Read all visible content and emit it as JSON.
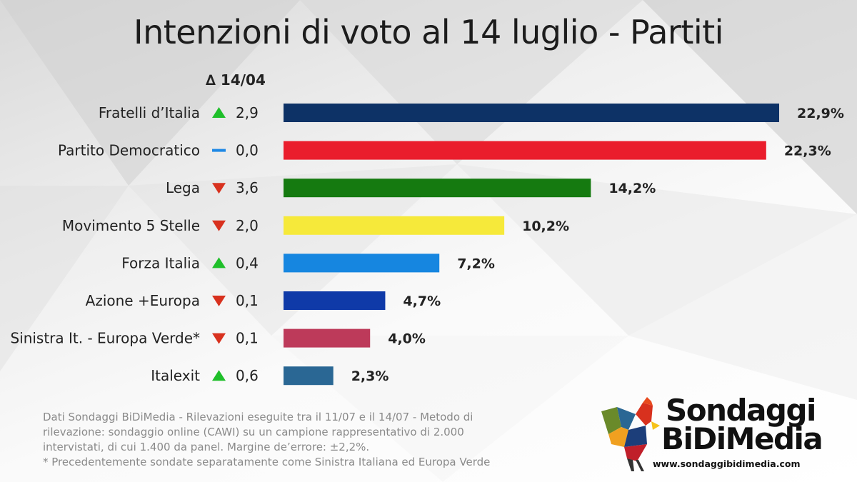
{
  "title": "Intenzioni di voto al 14 luglio - Partiti",
  "delta_header": "∆ 14/04",
  "colors": {
    "up": "#1fbf2a",
    "down": "#d8311e",
    "flat": "#1e88e5"
  },
  "chart_data": {
    "type": "bar",
    "orientation": "horizontal",
    "categories": [
      "Fratelli d’Italia",
      "Partito Democratico",
      "Lega",
      "Movimento 5 Stelle",
      "Forza Italia",
      "Azione +Europa",
      "Sinistra It. - Europa Verde*",
      "Italexit"
    ],
    "values": [
      22.9,
      22.3,
      14.2,
      10.2,
      7.2,
      4.7,
      4.0,
      2.3
    ],
    "value_labels": [
      "22,9%",
      "22,3%",
      "14,2%",
      "10,2%",
      "7,2%",
      "4,7%",
      "4,0%",
      "2,3%"
    ],
    "bar_colors": [
      "#0d3266",
      "#ea1d2c",
      "#157a10",
      "#f6e93a",
      "#1686e0",
      "#0f3aa8",
      "#bd3a5a",
      "#2a6794"
    ],
    "delta": {
      "header": "∆ 14/04",
      "directions": [
        "up",
        "flat",
        "down",
        "down",
        "up",
        "down",
        "down",
        "up"
      ],
      "labels": [
        "2,9",
        "0,0",
        "3,6",
        "2,0",
        "0,4",
        "0,1",
        "0,1",
        "0,6"
      ]
    },
    "xlim": [
      0,
      22.9
    ],
    "grid": false,
    "legend": "none"
  },
  "footnote": {
    "line1": "Dati Sondaggi BiDiMedia - Rilevazioni eseguite tra il 11/07 e il 14/07 - Metodo di",
    "line2": "rilevazione: sondaggio online (CAWI) su un campione rappresentativo di 2.000",
    "line3": "intervistati, di cui 1.400 da panel. Margine de’errore: ±2,2%.",
    "line4": "* Precedentemente sondate separatamente come Sinistra Italiana ed Europa Verde"
  },
  "logo": {
    "line1": "Sondaggi",
    "line2": "BiDiMedia",
    "url": "www.sondaggibidimedia.com"
  }
}
